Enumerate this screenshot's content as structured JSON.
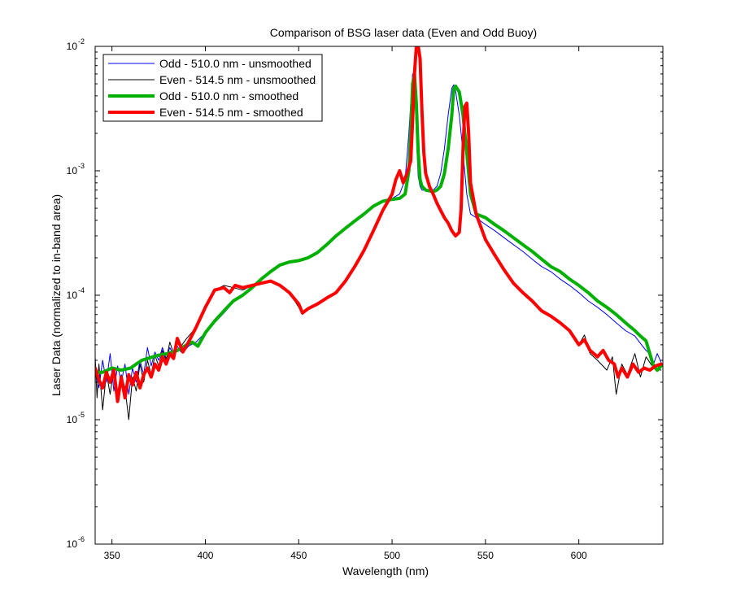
{
  "chart_data": {
    "type": "line",
    "title": "Comparison of BSG laser data (Even and Odd Buoy)",
    "xlabel": "Wavelength (nm)",
    "ylabel": "Laser Data (normalized to in-band area)",
    "xlim": [
      341,
      645
    ],
    "ylim": [
      1e-06,
      0.01
    ],
    "yscale": "log",
    "x_ticks": [
      350,
      400,
      450,
      500,
      550,
      600
    ],
    "x_tick_labels": [
      "350",
      "400",
      "450",
      "500",
      "550",
      "600"
    ],
    "y_ticks": [
      1e-06,
      1e-05,
      0.0001,
      0.001,
      0.01
    ],
    "y_tick_bases": [
      "10",
      "10",
      "10",
      "10",
      "10"
    ],
    "y_tick_exponents": [
      "-6",
      "-5",
      "-4",
      "-3",
      "-2"
    ],
    "grid": false,
    "legend_position": "top-left",
    "series": [
      {
        "name": "Odd - 510.0 nm - unsmoothed",
        "color": "#0000ff",
        "style": "thin",
        "x": [
          341,
          343,
          345,
          347,
          349,
          351,
          353,
          355,
          357,
          359,
          361,
          363,
          365,
          367,
          369,
          371,
          373,
          375,
          377,
          379,
          381,
          383,
          385,
          387,
          389,
          391,
          395,
          400,
          405,
          410,
          415,
          420,
          425,
          430,
          435,
          440,
          445,
          450,
          455,
          460,
          465,
          470,
          475,
          480,
          485,
          490,
          495,
          500,
          504,
          507,
          509,
          511,
          512,
          513,
          514,
          515,
          516,
          518,
          520,
          522,
          524,
          526,
          528,
          530,
          532,
          533,
          534,
          536,
          538,
          540,
          542,
          545,
          550,
          555,
          560,
          565,
          570,
          575,
          580,
          585,
          590,
          595,
          600,
          605,
          610,
          615,
          620,
          625,
          630,
          633,
          636,
          638,
          640,
          642,
          644
        ],
        "y": [
          2.5e-05,
          1.8e-05,
          3e-05,
          2e-05,
          3.4e-05,
          1.7e-05,
          2.7e-05,
          2e-05,
          2.8e-05,
          1.6e-05,
          2.6e-05,
          2e-05,
          3e-05,
          2.3e-05,
          3.8e-05,
          2.7e-05,
          3.5e-05,
          3e-05,
          3.8e-05,
          3.1e-05,
          3.8e-05,
          3.3e-05,
          3.9e-05,
          3.5e-05,
          3.6e-05,
          3.9e-05,
          4.2e-05,
          5e-05,
          6e-05,
          7.2e-05,
          8.8e-05,
          0.0001,
          0.000115,
          0.000135,
          0.000155,
          0.000175,
          0.000185,
          0.00019,
          0.0002,
          0.00022,
          0.000255,
          0.0003,
          0.000345,
          0.000395,
          0.00045,
          0.00052,
          0.00058,
          0.0006,
          0.00065,
          0.00085,
          0.002,
          0.006,
          0.005,
          0.002,
          0.0009,
          0.00075,
          0.0007,
          0.0007,
          0.00068,
          0.0007,
          0.00075,
          0.00095,
          0.0015,
          0.0028,
          0.0046,
          0.0049,
          0.0044,
          0.0028,
          0.0014,
          0.00065,
          0.00045,
          0.00042,
          0.00037,
          0.00033,
          0.00029,
          0.000255,
          0.000225,
          0.000195,
          0.00017,
          0.000155,
          0.000135,
          0.00012,
          0.000105,
          9e-05,
          8e-05,
          7e-05,
          6e-05,
          5.2e-05,
          4.7e-05,
          4.1e-05,
          3.6e-05,
          3.4e-05,
          2.8e-05,
          3.4e-05,
          2.9e-05
        ]
      },
      {
        "name": "Even - 514.5 nm - unsmoothed",
        "color": "#000000",
        "style": "thin",
        "x": [
          341,
          342,
          343,
          345,
          347,
          349,
          351,
          353,
          355,
          357,
          359,
          361,
          363,
          365,
          367,
          369,
          371,
          373,
          375,
          377,
          379,
          381,
          383,
          385,
          387,
          390,
          395,
          400,
          405,
          410,
          415,
          420,
          425,
          430,
          435,
          440,
          445,
          450,
          452,
          455,
          460,
          465,
          470,
          475,
          480,
          485,
          490,
          495,
          500,
          502,
          504,
          506,
          508,
          510,
          511,
          512,
          513,
          514,
          515,
          516,
          517,
          518,
          520,
          522,
          524,
          526,
          528,
          530,
          532,
          534,
          536,
          537,
          538,
          539,
          540,
          541,
          542,
          545,
          550,
          555,
          560,
          565,
          570,
          575,
          580,
          585,
          590,
          595,
          600,
          603,
          606,
          610,
          615,
          618,
          620,
          623,
          626,
          630,
          633,
          636,
          640,
          644
        ],
        "y": [
          3.2e-05,
          1.5e-05,
          2.8e-05,
          1.2e-05,
          2.4e-05,
          1.6e-05,
          2.6e-05,
          1.4e-05,
          2.3e-05,
          1.8e-05,
          1e-05,
          2.2e-05,
          1.7e-05,
          2.8e-05,
          2e-05,
          3e-05,
          2.3e-05,
          3.3e-05,
          2.7e-05,
          3.6e-05,
          3e-05,
          4.2e-05,
          3.4e-05,
          4.6e-05,
          3.9e-05,
          4.5e-05,
          5.5e-05,
          8e-05,
          0.00011,
          0.00012,
          0.000115,
          0.00011,
          0.00012,
          0.000125,
          0.00013,
          0.000122,
          0.000105,
          8e-05,
          7e-05,
          7.8e-05,
          8.5e-05,
          9.5e-05,
          0.000105,
          0.00013,
          0.00017,
          0.00023,
          0.00033,
          0.00048,
          0.00065,
          0.00085,
          0.001,
          0.0008,
          0.00095,
          0.0012,
          0.0025,
          0.006,
          0.01,
          0.01,
          0.008,
          0.003,
          0.0014,
          0.00095,
          0.00075,
          0.00065,
          0.00055,
          0.00048,
          0.00042,
          0.00038,
          0.00033,
          0.0003,
          0.00032,
          0.0005,
          0.0015,
          0.0033,
          0.0035,
          0.002,
          0.0008,
          0.00045,
          0.00028,
          0.00021,
          0.00016,
          0.000125,
          0.000105,
          9e-05,
          7.5e-05,
          6.8e-05,
          6e-05,
          5.2e-05,
          4e-05,
          4.8e-05,
          3.4e-05,
          3e-05,
          2.5e-05,
          3.2e-05,
          1.6e-05,
          2.8e-05,
          2.3e-05,
          3.4e-05,
          2.2e-05,
          3.2e-05,
          2.6e-05,
          2.5e-05
        ]
      },
      {
        "name": "Odd - 510.0 nm - smoothed",
        "color": "#00b000",
        "style": "thick",
        "x": [
          341,
          345,
          350,
          355,
          360,
          363,
          366,
          369,
          372,
          375,
          380,
          385,
          390,
          393,
          396,
          400,
          405,
          410,
          415,
          420,
          425,
          430,
          435,
          440,
          445,
          450,
          455,
          460,
          465,
          470,
          475,
          480,
          485,
          490,
          495,
          500,
          504,
          507,
          509,
          510,
          511,
          512,
          513,
          514,
          515,
          516,
          518,
          520,
          522,
          524,
          526,
          528,
          530,
          532,
          533,
          534,
          536,
          538,
          540,
          542,
          545,
          550,
          555,
          560,
          565,
          570,
          575,
          580,
          585,
          590,
          595,
          600,
          605,
          610,
          615,
          620,
          625,
          630,
          633,
          636,
          638,
          640,
          642,
          644
        ],
        "y": [
          2.4e-05,
          2.4e-05,
          2.6e-05,
          2.5e-05,
          2.6e-05,
          2.8e-05,
          3e-05,
          3.1e-05,
          3.2e-05,
          3.3e-05,
          3.4e-05,
          3.6e-05,
          4e-05,
          4.2e-05,
          3.9e-05,
          5e-05,
          6.2e-05,
          7.5e-05,
          9e-05,
          0.0001,
          0.000115,
          0.000135,
          0.000155,
          0.000175,
          0.000185,
          0.00019,
          0.0002,
          0.00022,
          0.000255,
          0.0003,
          0.000345,
          0.000395,
          0.00045,
          0.00052,
          0.00057,
          0.00059,
          0.0006,
          0.00065,
          0.001,
          0.002,
          0.005,
          0.006,
          0.0035,
          0.0014,
          0.00085,
          0.00075,
          0.0007,
          0.00069,
          0.00068,
          0.0007,
          0.00075,
          0.00095,
          0.0015,
          0.0028,
          0.0045,
          0.0048,
          0.0043,
          0.0028,
          0.0014,
          0.00065,
          0.00045,
          0.00042,
          0.00037,
          0.00033,
          0.00029,
          0.000255,
          0.000225,
          0.000195,
          0.00017,
          0.000155,
          0.000135,
          0.00012,
          0.000105,
          9e-05,
          8e-05,
          7e-05,
          6e-05,
          5.2e-05,
          4.7e-05,
          4.3e-05,
          3.4e-05,
          2.7e-05,
          2.5e-05,
          2.7e-05
        ]
      },
      {
        "name": "Even - 514.5 nm - smoothed",
        "color": "#ff0000",
        "style": "thick",
        "x": [
          341,
          343,
          345,
          347,
          349,
          351,
          353,
          355,
          357,
          359,
          361,
          363,
          365,
          367,
          369,
          371,
          373,
          375,
          377,
          379,
          381,
          383,
          385,
          388,
          391,
          395,
          400,
          405,
          410,
          413,
          416,
          420,
          425,
          430,
          435,
          440,
          445,
          450,
          452,
          455,
          460,
          465,
          470,
          475,
          480,
          485,
          490,
          495,
          500,
          502,
          504,
          506,
          508,
          510,
          511,
          512,
          513,
          514,
          515,
          516,
          517,
          518,
          520,
          522,
          524,
          526,
          528,
          530,
          532,
          534,
          536,
          537,
          538,
          539,
          540,
          541,
          542,
          545,
          550,
          555,
          560,
          565,
          570,
          575,
          580,
          585,
          590,
          595,
          600,
          603,
          606,
          610,
          613,
          616,
          619,
          621,
          623,
          626,
          629,
          632,
          635,
          638,
          641,
          644
        ],
        "y": [
          2.6e-05,
          2.1e-05,
          1.8e-05,
          2.4e-05,
          2e-05,
          2.5e-05,
          1.4e-05,
          2.2e-05,
          1.5e-05,
          2.3e-05,
          1.9e-05,
          2.4e-05,
          1.8e-05,
          2.3e-05,
          2.6e-05,
          2.2e-05,
          2.8e-05,
          2.5e-05,
          3.2e-05,
          2.8e-05,
          3.4e-05,
          3.1e-05,
          4.5e-05,
          3.5e-05,
          4.2e-05,
          5.5e-05,
          8e-05,
          0.00011,
          0.000115,
          0.000105,
          0.00012,
          0.000115,
          0.00012,
          0.000125,
          0.00013,
          0.00012,
          0.000105,
          8.5e-05,
          7.2e-05,
          7.8e-05,
          8.5e-05,
          9.5e-05,
          0.000105,
          0.00013,
          0.00017,
          0.00023,
          0.00033,
          0.00048,
          0.00065,
          0.00085,
          0.001,
          0.0008,
          0.00095,
          0.0012,
          0.0025,
          0.006,
          0.01,
          0.01,
          0.008,
          0.003,
          0.0014,
          0.00095,
          0.00075,
          0.00065,
          0.00055,
          0.00048,
          0.00042,
          0.00038,
          0.00033,
          0.0003,
          0.00032,
          0.0005,
          0.0015,
          0.0033,
          0.0035,
          0.002,
          0.0008,
          0.00045,
          0.00028,
          0.00021,
          0.00016,
          0.000125,
          0.000105,
          9e-05,
          7.5e-05,
          6.8e-05,
          6e-05,
          5.2e-05,
          4e-05,
          4.4e-05,
          3.6e-05,
          3.2e-05,
          3.6e-05,
          3e-05,
          2.8e-05,
          2.2e-05,
          2.6e-05,
          2.2e-05,
          2.8e-05,
          2.4e-05,
          2.6e-05,
          2.5e-05,
          2.7e-05,
          2.8e-05
        ]
      }
    ]
  }
}
